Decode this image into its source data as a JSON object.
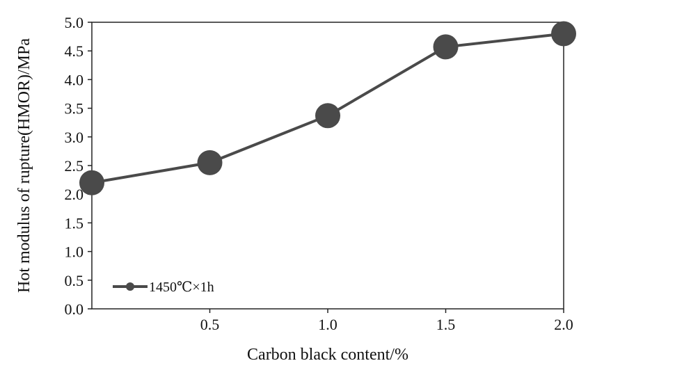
{
  "chart_data": {
    "type": "line",
    "x": [
      0,
      0.5,
      1.0,
      1.5,
      2.0
    ],
    "series": [
      {
        "name": "1450℃×1h",
        "values": [
          2.2,
          2.55,
          3.37,
          4.57,
          4.8
        ],
        "color": "#4a4a4a"
      }
    ],
    "xlabel": "Carbon black content/%",
    "ylabel": "Hot modulus of rupture(HMOR)/MPa",
    "xlim": [
      0,
      2.0
    ],
    "ylim": [
      0,
      5.0
    ],
    "x_ticks": [
      "0.5",
      "1.0",
      "1.5",
      "2.0"
    ],
    "y_ticks": [
      "0.0",
      "0.5",
      "1.0",
      "1.5",
      "2.0",
      "2.5",
      "3.0",
      "3.5",
      "4.0",
      "4.5",
      "5.0"
    ],
    "grid": false,
    "legend_position": "bottom-left"
  }
}
